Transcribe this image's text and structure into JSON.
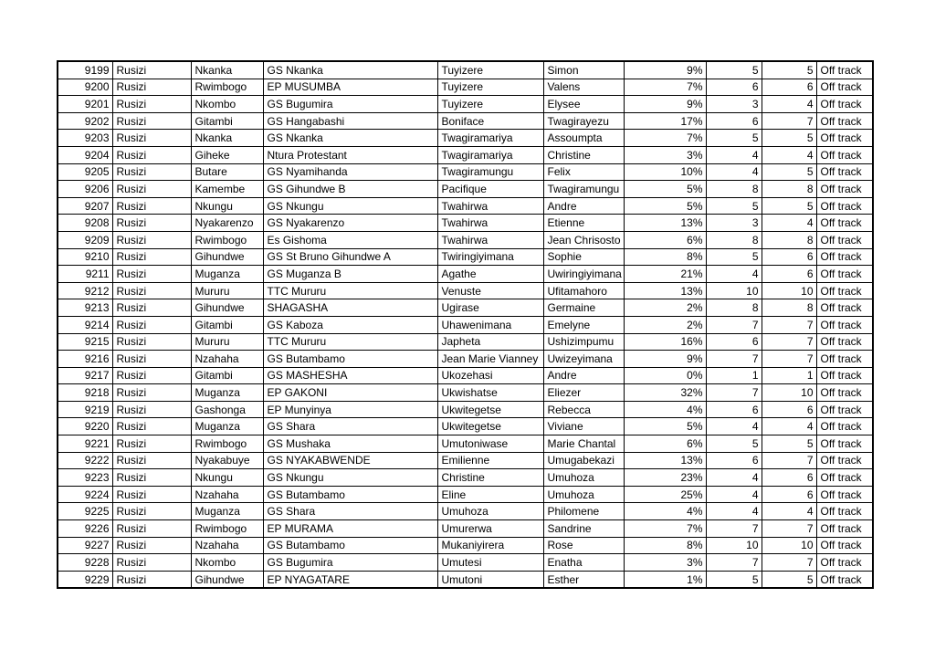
{
  "page": {
    "background_color": "#ffffff",
    "grid_border_color": "#000000",
    "text_color": "#000000"
  },
  "table": {
    "columns": [
      {
        "key": "id",
        "align": "right"
      },
      {
        "key": "district",
        "align": "left"
      },
      {
        "key": "sector",
        "align": "left"
      },
      {
        "key": "school",
        "align": "left"
      },
      {
        "key": "last-name",
        "align": "left"
      },
      {
        "key": "first-name",
        "align": "left"
      },
      {
        "key": "percent",
        "align": "right"
      },
      {
        "key": "value-1",
        "align": "right"
      },
      {
        "key": "value-2",
        "align": "right"
      },
      {
        "key": "status",
        "align": "left"
      }
    ],
    "rows": [
      [
        "9199",
        "Rusizi",
        "Nkanka",
        "GS Nkanka",
        "Tuyizere",
        "Simon",
        "9%",
        "5",
        "5",
        "Off track"
      ],
      [
        "9200",
        "Rusizi",
        "Rwimbogo",
        "EP MUSUMBA",
        "Tuyizere",
        "Valens",
        "7%",
        "6",
        "6",
        "Off track"
      ],
      [
        "9201",
        "Rusizi",
        "Nkombo",
        "GS Bugumira",
        "Tuyizere",
        "Elysee",
        "9%",
        "3",
        "4",
        "Off track"
      ],
      [
        "9202",
        "Rusizi",
        "Gitambi",
        "GS Hangabashi",
        "Boniface",
        "Twagirayezu",
        "17%",
        "6",
        "7",
        "Off track"
      ],
      [
        "9203",
        "Rusizi",
        "Nkanka",
        "GS Nkanka",
        "Twagiramariya",
        "Assoumpta",
        "7%",
        "5",
        "5",
        "Off track"
      ],
      [
        "9204",
        "Rusizi",
        "Giheke",
        "Ntura Protestant",
        "Twagiramariya",
        "Christine",
        "3%",
        "4",
        "4",
        "Off track"
      ],
      [
        "9205",
        "Rusizi",
        "Butare",
        "GS Nyamihanda",
        "Twagiramungu",
        "Felix",
        "10%",
        "4",
        "5",
        "Off track"
      ],
      [
        "9206",
        "Rusizi",
        "Kamembe",
        "GS Gihundwe B",
        "Pacifique",
        "Twagiramungu",
        "5%",
        "8",
        "8",
        "Off track"
      ],
      [
        "9207",
        "Rusizi",
        "Nkungu",
        "GS Nkungu",
        "Twahirwa",
        "Andre",
        "5%",
        "5",
        "5",
        "Off track"
      ],
      [
        "9208",
        "Rusizi",
        "Nyakarenzo",
        "GS Nyakarenzo",
        "Twahirwa",
        "Etienne",
        "13%",
        "3",
        "4",
        "Off track"
      ],
      [
        "9209",
        "Rusizi",
        "Rwimbogo",
        "Es Gishoma",
        "Twahirwa",
        "Jean Chrisosto",
        "6%",
        "8",
        "8",
        "Off track"
      ],
      [
        "9210",
        "Rusizi",
        "Gihundwe",
        "GS St Bruno Gihundwe A",
        "Twiringiyimana",
        "Sophie",
        "8%",
        "5",
        "6",
        "Off track"
      ],
      [
        "9211",
        "Rusizi",
        "Muganza",
        "GS Muganza B",
        "Agathe",
        "Uwiringiyimana",
        "21%",
        "4",
        "6",
        "Off track"
      ],
      [
        "9212",
        "Rusizi",
        "Mururu",
        "TTC Mururu",
        "Venuste",
        "Ufitamahoro",
        "13%",
        "10",
        "10",
        "Off track"
      ],
      [
        "9213",
        "Rusizi",
        "Gihundwe",
        "SHAGASHA",
        "Ugirase",
        "Germaine",
        "2%",
        "8",
        "8",
        "Off track"
      ],
      [
        "9214",
        "Rusizi",
        "Gitambi",
        "GS Kaboza",
        "Uhawenimana",
        "Emelyne",
        "2%",
        "7",
        "7",
        "Off track"
      ],
      [
        "9215",
        "Rusizi",
        "Mururu",
        "TTC Mururu",
        "Japheta",
        "Ushizimpumu",
        "16%",
        "6",
        "7",
        "Off track"
      ],
      [
        "9216",
        "Rusizi",
        "Nzahaha",
        "GS Butambamo",
        "Jean Marie Vianney",
        "Uwizeyimana",
        "9%",
        "7",
        "7",
        "Off track"
      ],
      [
        "9217",
        "Rusizi",
        "Gitambi",
        "GS MASHESHA",
        "Ukozehasi",
        "Andre",
        "0%",
        "1",
        "1",
        "Off track"
      ],
      [
        "9218",
        "Rusizi",
        "Muganza",
        "EP GAKONI",
        "Ukwishatse",
        "Eliezer",
        "32%",
        "7",
        "10",
        "Off track"
      ],
      [
        "9219",
        "Rusizi",
        "Gashonga",
        "EP Munyinya",
        "Ukwitegetse",
        "Rebecca",
        "4%",
        "6",
        "6",
        "Off track"
      ],
      [
        "9220",
        "Rusizi",
        "Muganza",
        "GS Shara",
        "Ukwitegetse",
        "Viviane",
        "5%",
        "4",
        "4",
        "Off track"
      ],
      [
        "9221",
        "Rusizi",
        "Rwimbogo",
        "GS Mushaka",
        "Umutoniwase",
        "Marie Chantal",
        "6%",
        "5",
        "5",
        "Off track"
      ],
      [
        "9222",
        "Rusizi",
        "Nyakabuye",
        "GS NYAKABWENDE",
        "Emilienne",
        "Umugabekazi",
        "13%",
        "6",
        "7",
        "Off track"
      ],
      [
        "9223",
        "Rusizi",
        "Nkungu",
        "GS Nkungu",
        "Christine",
        "Umuhoza",
        "23%",
        "4",
        "6",
        "Off track"
      ],
      [
        "9224",
        "Rusizi",
        "Nzahaha",
        "GS Butambamo",
        "Eline",
        "Umuhoza",
        "25%",
        "4",
        "6",
        "Off track"
      ],
      [
        "9225",
        "Rusizi",
        "Muganza",
        "GS Shara",
        "Umuhoza",
        "Philomene",
        "4%",
        "4",
        "4",
        "Off track"
      ],
      [
        "9226",
        "Rusizi",
        "Rwimbogo",
        "EP MURAMA",
        "Umurerwa",
        "Sandrine",
        "7%",
        "7",
        "7",
        "Off track"
      ],
      [
        "9227",
        "Rusizi",
        "Nzahaha",
        "GS Butambamo",
        "Mukaniyirera",
        "Rose",
        "8%",
        "10",
        "10",
        "Off track"
      ],
      [
        "9228",
        "Rusizi",
        "Nkombo",
        "GS Bugumira",
        "Umutesi",
        "Enatha",
        "3%",
        "7",
        "7",
        "Off track"
      ],
      [
        "9229",
        "Rusizi",
        "Gihundwe",
        "EP NYAGATARE",
        "Umutoni",
        "Esther",
        "1%",
        "5",
        "5",
        "Off track"
      ]
    ]
  }
}
